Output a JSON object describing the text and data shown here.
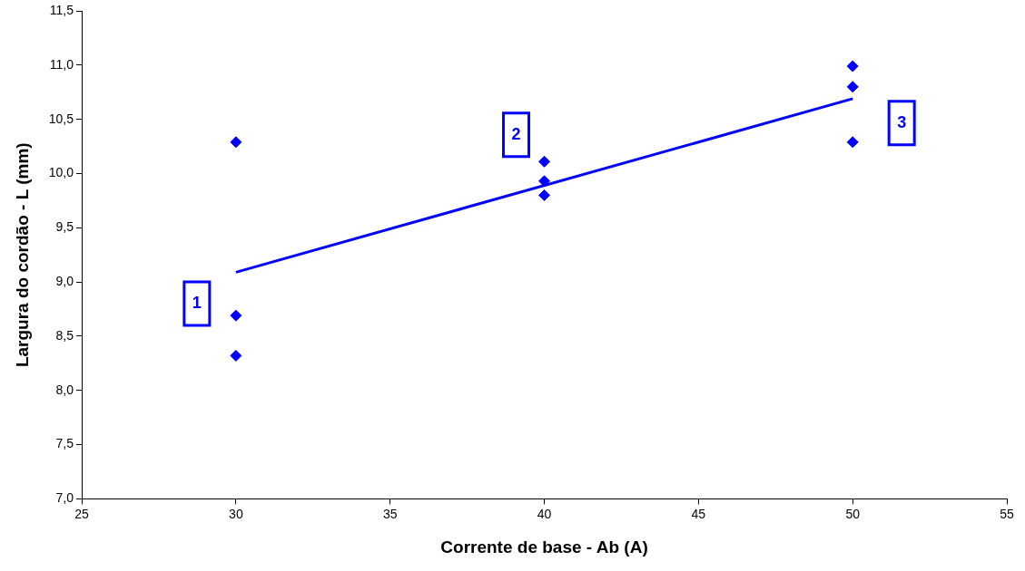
{
  "chart_data": {
    "type": "scatter",
    "xlabel": "Corrente de base - Ab (A)",
    "ylabel": "Largura do cordão - L (mm)",
    "series": [
      {
        "type": "scatter",
        "color": "#0000ff",
        "marker": "diamond",
        "x": [
          30,
          30,
          30,
          40,
          40,
          40,
          50,
          50,
          50
        ],
        "values": [
          10.29,
          8.69,
          8.32,
          10.11,
          9.93,
          9.8,
          10.99,
          10.8,
          10.29
        ]
      },
      {
        "type": "line",
        "color": "#0000ff",
        "marker": "none",
        "line_style": "solid",
        "x": [
          30,
          50
        ],
        "values": [
          9.09,
          10.69
        ]
      }
    ],
    "xlim": [
      25,
      55
    ],
    "xticks": [
      25,
      30,
      35,
      40,
      45,
      50,
      55
    ],
    "ylim": [
      7,
      11.5
    ],
    "yticks": [
      {
        "value": 7,
        "label": "7,0"
      },
      {
        "value": 7.5,
        "label": "7,5"
      },
      {
        "value": 8,
        "label": "8,0"
      },
      {
        "value": 8.5,
        "label": "8,5"
      },
      {
        "value": 9,
        "label": "9,0"
      },
      {
        "value": 9.5,
        "label": "9,5"
      },
      {
        "value": 10,
        "label": "10,0"
      },
      {
        "value": 10.5,
        "label": "10,5"
      },
      {
        "value": 11,
        "label": "11,0"
      },
      {
        "value": 11.5,
        "label": "11,5"
      }
    ],
    "grid": false,
    "legend": false,
    "annotations": [
      "1",
      "2",
      "3"
    ]
  }
}
